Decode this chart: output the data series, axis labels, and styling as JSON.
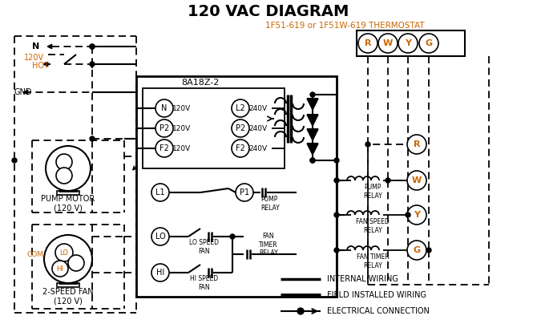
{
  "title": "120 VAC DIAGRAM",
  "title_color": "#000000",
  "title_fontsize": 14,
  "bg_color": "#ffffff",
  "line_color": "#000000",
  "orange_color": "#cc6600",
  "thermostat_label": "1F51-619 or 1F51W-619 THERMOSTAT",
  "box_label": "8A18Z-2",
  "legend_internal": "INTERNAL WIRING",
  "legend_field": "FIELD INSTALLED WIRING",
  "legend_elec": "ELECTRICAL CONNECTION",
  "pump_motor_label": "PUMP MOTOR\n(120 V)",
  "fan_label": "2-SPEED FAN\n(120 V)",
  "terminals": [
    "R",
    "W",
    "Y",
    "G"
  ],
  "com_label": "COM"
}
